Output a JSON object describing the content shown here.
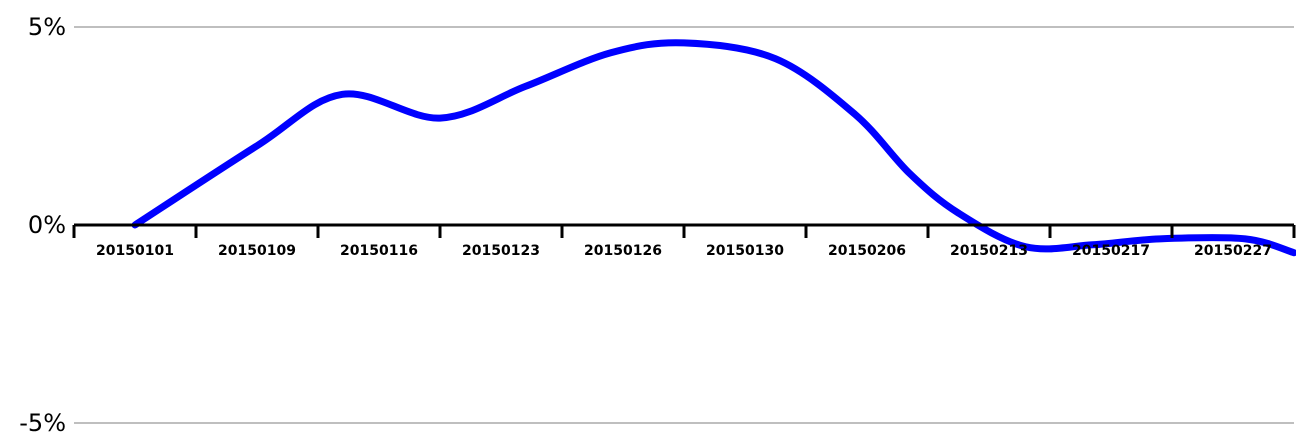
{
  "chart_data": {
    "type": "line",
    "title": "",
    "xlabel": "",
    "ylabel": "",
    "categories": [
      "20150101",
      "20150109",
      "20150116",
      "20150123",
      "20150126",
      "20150130",
      "20150206",
      "20150213",
      "20150217",
      "20150227"
    ],
    "x": [
      0,
      1,
      1.7,
      2.5,
      3.2,
      3.9,
      4.5,
      5.25,
      5.9,
      6.35,
      6.75,
      7.3,
      7.85,
      8.4,
      9.1,
      9.5
    ],
    "series": [
      {
        "values": [
          0.0,
          2.0,
          3.3,
          2.7,
          3.5,
          4.35,
          4.6,
          4.2,
          2.8,
          1.3,
          0.3,
          -0.55,
          -0.5,
          -0.35,
          -0.35,
          -0.7
        ],
        "color": "#0000ff"
      }
    ],
    "ylim": [
      -5,
      5
    ],
    "yticks": [
      {
        "value": 5,
        "label": "5%"
      },
      {
        "value": 0,
        "label": "0%"
      },
      {
        "value": -5,
        "label": "-5%"
      }
    ],
    "grid": true,
    "legend": "none"
  }
}
